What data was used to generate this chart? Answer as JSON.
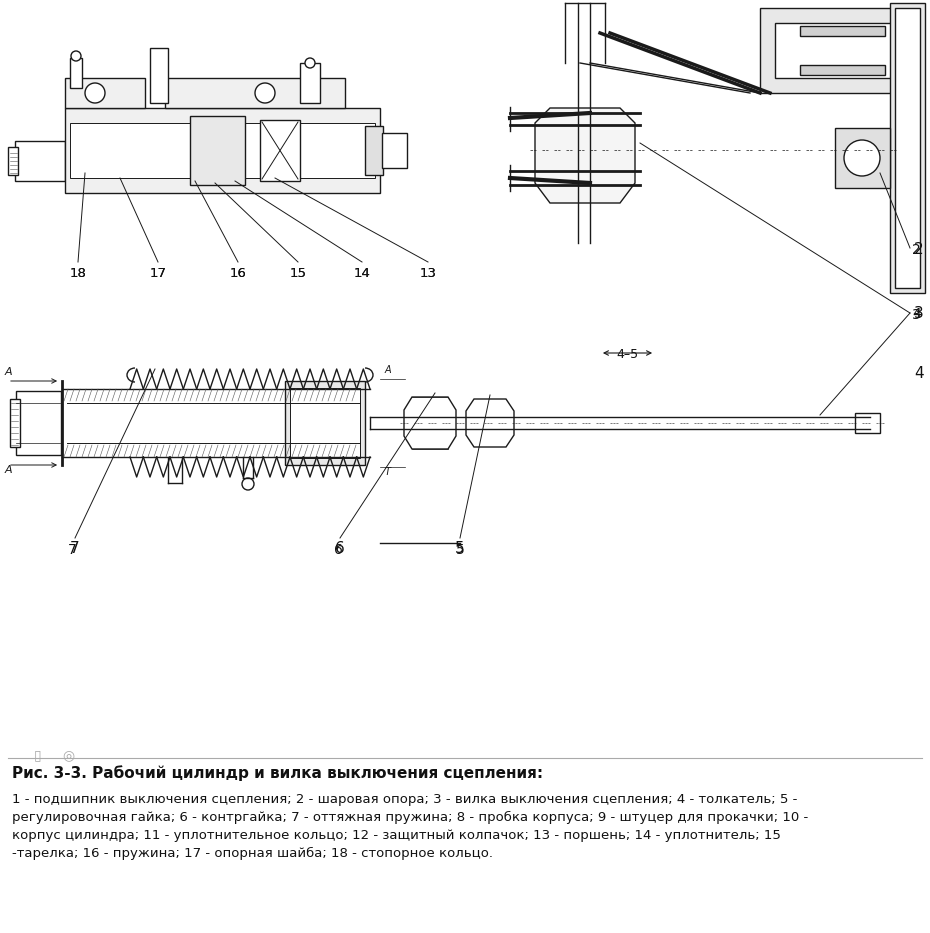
{
  "background_color": "#ffffff",
  "fig_width": 9.3,
  "fig_height": 9.33,
  "dpi": 100,
  "title": "Рис. 3-3. Рабочий цилиндр и вилка выключения сцепления:",
  "title_fontsize": 11,
  "description_fontsize": 9.5,
  "text_color": "#111111",
  "line_color": "#1a1a1a",
  "hatch_color": "#555555",
  "label_nums_upper": [
    "18",
    "17",
    "16",
    "15",
    "14",
    "13"
  ],
  "label_nums_right": [
    "2",
    "3",
    "4"
  ],
  "label_nums_bottom": [
    "7",
    "6",
    "5"
  ],
  "desc_lines": [
    "1 - подшипник выключения сцепления; 2 - шаровая опора; 3 - вилка выключения сцепления; 4 - толкатель; 5 -",
    "регулировочная гайка; 6 - контргайка; 7 - оттяжная пружина; 8 - пробка корпуса; 9 - штуцер для прокачки; 10 -",
    "корпус цилиндра; 11 - уплотнительное кольцо; 12 - защитный колпачок; 13 - поршень; 14 - уплотнитель; 15",
    "-тарелка; 16 - пружина; 17 - опорная шайба; 18 - стопорное кольцо."
  ]
}
